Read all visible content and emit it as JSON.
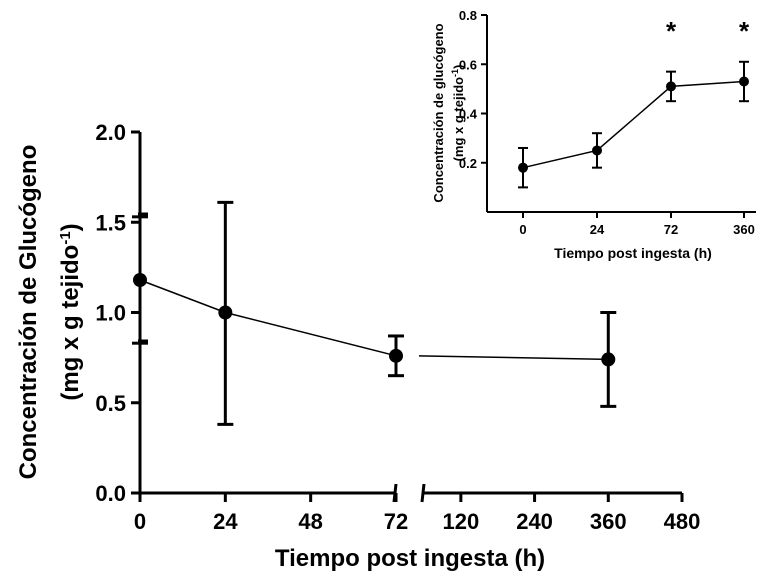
{
  "chart_data": [
    {
      "type": "line",
      "xlabel": "Tiempo post ingesta (h)",
      "ylabel_line1": "Concentración de Glucógeno",
      "ylabel_line2": "(mg x g tejido",
      "ylabel_sup": "-1",
      "ylabel_close": ")",
      "ylim": [
        0,
        2.0
      ],
      "yticks": [
        "0.0",
        "0.5",
        "1.0",
        "1.5",
        "2.0"
      ],
      "yticks_values": [
        0,
        0.5,
        1.0,
        1.5,
        2.0
      ],
      "x_segment1_ticks": [
        0,
        24,
        48,
        72
      ],
      "x_segment2_ticks": [
        120,
        240,
        360,
        480
      ],
      "x_segment1_range": [
        0,
        72
      ],
      "x_segment2_range": [
        60,
        480
      ],
      "points": [
        {
          "x": 0,
          "y": 1.18,
          "err_low": 0.35,
          "err_high": 0.35
        },
        {
          "x": 24,
          "y": 1.0,
          "err_low": 0.62,
          "err_high": 0.61
        },
        {
          "x": 72,
          "y": 0.76,
          "err_low": 0.11,
          "err_high": 0.11
        },
        {
          "x": 360,
          "y": 0.74,
          "err_low": 0.26,
          "err_high": 0.26
        }
      ]
    },
    {
      "type": "line",
      "xlabel": "Tiempo post ingesta (h)",
      "ylabel_line1": "Concentración de glucógeno",
      "ylabel_line2": "(mg x g tejido",
      "ylabel_sup": "-1",
      "ylabel_close": ")",
      "ylim": [
        0,
        0.8
      ],
      "yticks": [
        "0.2",
        "0.4",
        "0.6",
        "0.8"
      ],
      "yticks_values": [
        0.2,
        0.4,
        0.6,
        0.8
      ],
      "categories": [
        "0",
        "24",
        "72",
        "360"
      ],
      "values": [
        0.18,
        0.25,
        0.51,
        0.53
      ],
      "errors": [
        0.08,
        0.07,
        0.06,
        0.08
      ],
      "annotations": [
        "",
        "",
        "*",
        "*"
      ]
    }
  ]
}
